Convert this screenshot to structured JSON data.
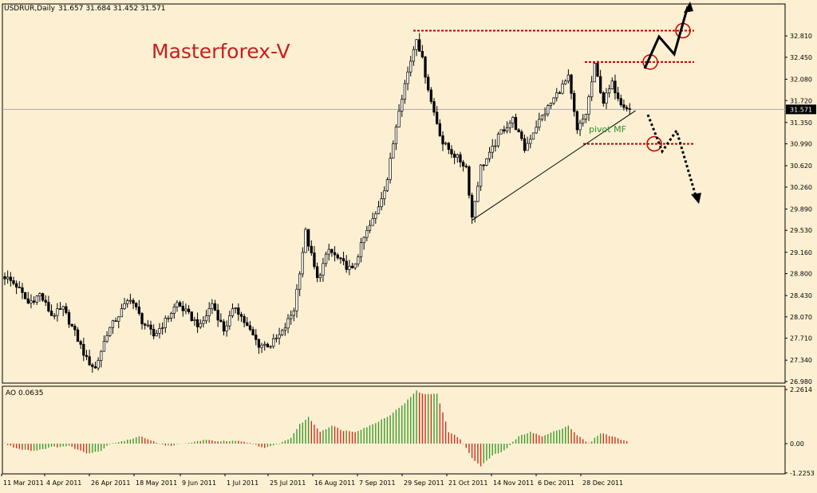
{
  "header": {
    "symbol": "USDRUR,Daily",
    "ohlc": "31.657 31.684 31.452 31.571"
  },
  "watermark": "Masterforex-V",
  "pivot_label": "pivot MF",
  "ao_label": "AO 0.0635",
  "colors": {
    "background": "#fdf0d2",
    "candle": "#000000",
    "level_line": "#c00000",
    "pivot_text": "#2f8f2f",
    "ao_up": "#3b9a2e",
    "ao_down": "#d03020",
    "watermark": "#c81e1e"
  },
  "chart_data": [
    {
      "type": "candlestick",
      "title": "USDRUR,Daily",
      "ylim": [
        26.98,
        33.0
      ],
      "y_ticks": [
        "32.810",
        "32.450",
        "32.080",
        "31.720",
        "31.350",
        "30.990",
        "30.620",
        "30.260",
        "29.890",
        "29.530",
        "29.160",
        "28.800",
        "28.430",
        "28.070",
        "27.710",
        "27.340",
        "26.980"
      ],
      "current_price": "31.571",
      "x_ticks": [
        "11 Mar 2011",
        "4 Apr 2011",
        "26 Apr 2011",
        "18 May 2011",
        "9 Jun 2011",
        "1 Jul 2011",
        "25 Jul 2011",
        "16 Aug 2011",
        "7 Sep 2011",
        "29 Sep 2011",
        "21 Oct 2011",
        "14 Nov 2011",
        "6 Dec 2011",
        "28 Dec 2011"
      ],
      "close_path": [
        [
          0,
          28.75
        ],
        [
          4,
          28.6
        ],
        [
          8,
          28.3
        ],
        [
          12,
          28.45
        ],
        [
          16,
          28.1
        ],
        [
          20,
          28.2
        ],
        [
          24,
          27.8
        ],
        [
          28,
          27.35
        ],
        [
          31,
          27.2
        ],
        [
          35,
          27.8
        ],
        [
          39,
          28.1
        ],
        [
          43,
          28.4
        ],
        [
          47,
          28.0
        ],
        [
          51,
          27.75
        ],
        [
          55,
          28.0
        ],
        [
          59,
          28.3
        ],
        [
          63,
          28.1
        ],
        [
          67,
          27.9
        ],
        [
          71,
          28.3
        ],
        [
          75,
          27.85
        ],
        [
          79,
          28.25
        ],
        [
          83,
          27.9
        ],
        [
          87,
          27.6
        ],
        [
          91,
          27.6
        ],
        [
          95,
          27.8
        ],
        [
          99,
          28.2
        ],
        [
          103,
          29.5
        ],
        [
          107,
          28.7
        ],
        [
          111,
          29.2
        ],
        [
          115,
          29.0
        ],
        [
          119,
          28.85
        ],
        [
          123,
          29.4
        ],
        [
          127,
          29.8
        ],
        [
          131,
          30.4
        ],
        [
          135,
          31.6
        ],
        [
          139,
          32.4
        ],
        [
          141,
          32.8
        ],
        [
          143,
          32.4
        ],
        [
          146,
          31.7
        ],
        [
          150,
          31.0
        ],
        [
          154,
          30.8
        ],
        [
          158,
          30.6
        ],
        [
          160,
          29.75
        ],
        [
          163,
          30.6
        ],
        [
          166,
          30.8
        ],
        [
          170,
          31.2
        ],
        [
          174,
          31.4
        ],
        [
          178,
          30.9
        ],
        [
          182,
          31.3
        ],
        [
          186,
          31.6
        ],
        [
          190,
          31.9
        ],
        [
          193,
          32.1
        ],
        [
          196,
          31.2
        ],
        [
          199,
          31.5
        ],
        [
          202,
          32.3
        ],
        [
          205,
          31.7
        ],
        [
          208,
          32.0
        ],
        [
          211,
          31.7
        ],
        [
          214,
          31.571
        ]
      ],
      "levels": [
        "32.900",
        "32.370",
        "30.990"
      ],
      "trendline": {
        "from": [
          160,
          29.7
        ],
        "to": [
          216,
          31.55
        ]
      }
    },
    {
      "type": "bar",
      "title": "AO 0.0635",
      "ylim": [
        -1.2253,
        2.2614
      ],
      "y_ticks": [
        "2.2614",
        "0.00",
        "-1.2253"
      ],
      "value_path": [
        [
          0,
          0.0
        ],
        [
          4,
          -0.2
        ],
        [
          10,
          -0.3
        ],
        [
          16,
          -0.15
        ],
        [
          22,
          -0.1
        ],
        [
          28,
          -0.4
        ],
        [
          33,
          -0.3
        ],
        [
          36,
          0.0
        ],
        [
          42,
          0.15
        ],
        [
          46,
          0.3
        ],
        [
          49,
          0.2
        ],
        [
          55,
          -0.1
        ],
        [
          62,
          0.0
        ],
        [
          68,
          0.15
        ],
        [
          74,
          0.1
        ],
        [
          80,
          0.1
        ],
        [
          85,
          0.0
        ],
        [
          89,
          -0.2
        ],
        [
          94,
          0.0
        ],
        [
          98,
          0.25
        ],
        [
          101,
          0.8
        ],
        [
          104,
          1.1
        ],
        [
          108,
          0.5
        ],
        [
          112,
          0.75
        ],
        [
          116,
          0.55
        ],
        [
          120,
          0.5
        ],
        [
          126,
          0.8
        ],
        [
          132,
          1.2
        ],
        [
          137,
          1.7
        ],
        [
          141,
          2.2
        ],
        [
          144,
          2.05
        ],
        [
          148,
          2.1
        ],
        [
          152,
          0.5
        ],
        [
          156,
          0.2
        ],
        [
          160,
          -0.6
        ],
        [
          163,
          -0.95
        ],
        [
          167,
          -0.5
        ],
        [
          171,
          -0.3
        ],
        [
          176,
          0.3
        ],
        [
          180,
          0.5
        ],
        [
          184,
          0.3
        ],
        [
          188,
          0.5
        ],
        [
          193,
          0.75
        ],
        [
          196,
          0.35
        ],
        [
          200,
          0.0
        ],
        [
          204,
          0.45
        ],
        [
          208,
          0.3
        ],
        [
          214,
          0.0635
        ]
      ]
    }
  ]
}
